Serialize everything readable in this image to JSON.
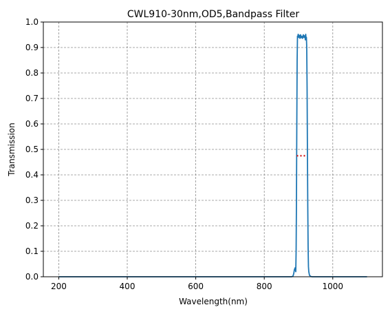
{
  "chart_data": {
    "type": "line",
    "title": "CWL910-30nm,OD5,Bandpass Filter",
    "xlabel": "Wavelength(nm)",
    "ylabel": "Transmission",
    "xlim": [
      155,
      1145
    ],
    "ylim": [
      0,
      1.0
    ],
    "x_ticks": [
      200,
      400,
      600,
      800,
      1000
    ],
    "y_ticks": [
      0,
      0.1,
      0.2,
      0.3,
      0.4,
      0.5,
      0.6,
      0.7,
      0.8,
      0.9,
      1.0
    ],
    "x_tick_labels": [
      "200",
      "400",
      "600",
      "800",
      "1000"
    ],
    "y_tick_labels": [
      "0.0",
      "0.1",
      "0.2",
      "0.3",
      "0.4",
      "0.5",
      "0.6",
      "0.7",
      "0.8",
      "0.9",
      "1.0"
    ],
    "grid": true,
    "series": [
      {
        "color": "#1f77b4",
        "x": [
          200,
          400,
          600,
          800,
          880,
          884,
          886,
          888,
          890,
          892,
          893,
          894,
          895,
          896,
          897,
          898,
          899,
          900,
          902,
          904,
          906,
          908,
          910,
          912,
          914,
          916,
          918,
          920,
          921,
          922,
          923,
          924,
          925,
          926,
          927,
          928,
          929,
          930,
          932,
          936,
          940,
          1000,
          1100
        ],
        "y": [
          0.0,
          0.0,
          0.0,
          0.0,
          0.0,
          0.003,
          0.012,
          0.028,
          0.035,
          0.02,
          0.1,
          0.3,
          0.6,
          0.85,
          0.945,
          0.938,
          0.952,
          0.94,
          0.948,
          0.936,
          0.95,
          0.938,
          0.944,
          0.936,
          0.95,
          0.94,
          0.946,
          0.93,
          0.952,
          0.935,
          0.94,
          0.9,
          0.75,
          0.5,
          0.28,
          0.12,
          0.04,
          0.02,
          0.006,
          0.001,
          0.0,
          0.0,
          0.0
        ]
      },
      {
        "color": "#d62728",
        "style": "dotted",
        "x": [
          895,
          925
        ],
        "y": [
          0.475,
          0.475
        ]
      }
    ]
  }
}
